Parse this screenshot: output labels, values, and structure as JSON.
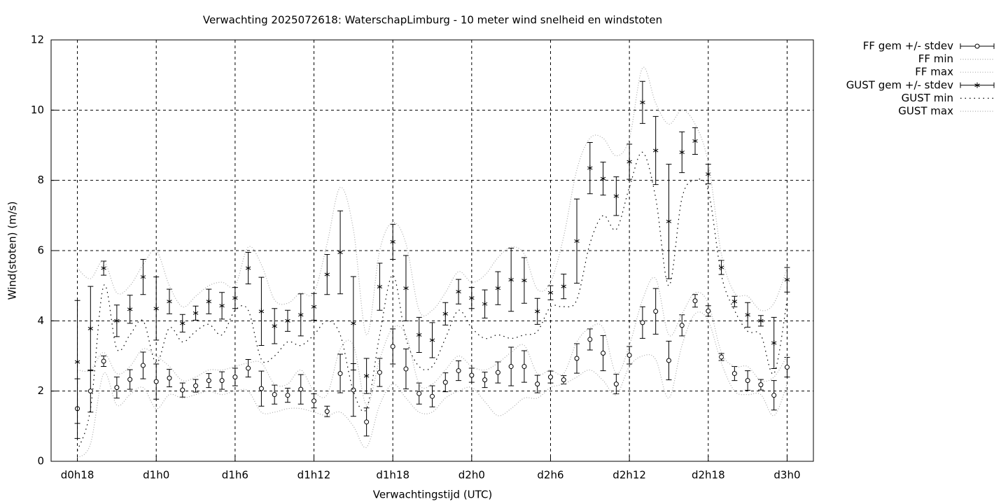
{
  "chart_data": {
    "type": "errorbar_line",
    "title": "Verwachting 2025072618: WaterschapLimburg - 10 meter wind snelheid en windstoten",
    "x_label": "Verwachtingstijd (UTC)",
    "y_label": "Wind(stoten) (m/s)",
    "xlim": [
      16,
      74
    ],
    "xticks": [
      {
        "value": 18,
        "label": "d0h18"
      },
      {
        "value": 24,
        "label": "d1h0"
      },
      {
        "value": 30,
        "label": "d1h6"
      },
      {
        "value": 36,
        "label": "d1h12"
      },
      {
        "value": 42,
        "label": "d1h18"
      },
      {
        "value": 48,
        "label": "d2h0"
      },
      {
        "value": 54,
        "label": "d2h6"
      },
      {
        "value": 60,
        "label": "d2h12"
      },
      {
        "value": 66,
        "label": "d2h18"
      },
      {
        "value": 72,
        "label": "d3h0"
      }
    ],
    "ylim": [
      0,
      12
    ],
    "yticks": [
      0,
      2,
      4,
      6,
      8,
      10,
      12
    ],
    "grid": true,
    "legend": "outside-right-top",
    "x": [
      18,
      19,
      20,
      21,
      22,
      23,
      24,
      25,
      26,
      27,
      28,
      29,
      30,
      31,
      32,
      33,
      34,
      35,
      36,
      37,
      38,
      39,
      40,
      41,
      42,
      43,
      44,
      45,
      46,
      47,
      48,
      49,
      50,
      51,
      52,
      53,
      54,
      55,
      56,
      57,
      58,
      59,
      60,
      61,
      62,
      63,
      64,
      65,
      66,
      67,
      68,
      69,
      70,
      71,
      72
    ],
    "series": [
      {
        "name": "FF gem +/- stdev",
        "color": "#000000",
        "marker": "circle",
        "values": [
          1.5,
          2.0,
          2.85,
          2.1,
          2.33,
          2.73,
          2.27,
          2.37,
          2.03,
          2.15,
          2.3,
          2.3,
          2.4,
          2.65,
          2.07,
          1.9,
          1.88,
          2.05,
          1.72,
          1.42,
          2.5,
          2.03,
          1.12,
          2.53,
          3.27,
          2.63,
          1.93,
          1.85,
          2.25,
          2.58,
          2.45,
          2.32,
          2.53,
          2.7,
          2.7,
          2.2,
          2.4,
          2.32,
          2.93,
          3.47,
          3.08,
          2.2,
          3.02,
          3.95,
          4.27,
          2.87,
          3.87,
          4.57,
          4.28,
          2.97,
          2.5,
          2.3,
          2.18,
          1.88,
          2.68
        ],
        "errors": [
          0.85,
          0.6,
          0.15,
          0.3,
          0.28,
          0.38,
          0.5,
          0.25,
          0.2,
          0.18,
          0.2,
          0.25,
          0.25,
          0.25,
          0.5,
          0.27,
          0.2,
          0.42,
          0.2,
          0.15,
          0.55,
          0.75,
          0.4,
          0.4,
          0.5,
          0.57,
          0.3,
          0.3,
          0.27,
          0.28,
          0.2,
          0.22,
          0.3,
          0.55,
          0.45,
          0.25,
          0.17,
          0.12,
          0.42,
          0.3,
          0.5,
          0.28,
          0.25,
          0.45,
          0.65,
          0.55,
          0.3,
          0.18,
          0.15,
          0.1,
          0.2,
          0.28,
          0.15,
          0.42,
          0.28
        ]
      },
      {
        "name": "FF min",
        "color": "#aaaaaa",
        "values": [
          0.1,
          0.5,
          2.5,
          1.6,
          1.9,
          2.1,
          1.5,
          1.9,
          1.8,
          1.9,
          2.0,
          1.9,
          2.0,
          2.0,
          1.4,
          1.4,
          1.5,
          1.5,
          1.4,
          1.3,
          1.4,
          1.0,
          0.4,
          1.6,
          2.2,
          1.8,
          1.4,
          1.4,
          1.8,
          2.0,
          2.1,
          1.7,
          1.3,
          1.5,
          1.8,
          1.8,
          2.1,
          2.2,
          2.4,
          2.6,
          2.3,
          1.9,
          2.7,
          3.0,
          2.9,
          1.8,
          3.3,
          4.2,
          4.0,
          2.8,
          2.0,
          1.9,
          1.9,
          1.3,
          2.2
        ]
      },
      {
        "name": "FF max",
        "color": "#aaaaaa",
        "values": [
          2.6,
          2.6,
          3.1,
          2.5,
          2.7,
          3.2,
          3.0,
          2.7,
          2.3,
          2.4,
          2.6,
          2.6,
          2.7,
          2.8,
          2.8,
          2.2,
          2.2,
          2.6,
          2.0,
          1.9,
          3.2,
          3.3,
          1.6,
          2.9,
          3.8,
          3.6,
          2.2,
          2.2,
          2.6,
          3.0,
          2.7,
          2.6,
          2.8,
          3.1,
          3.3,
          2.5,
          2.6,
          2.5,
          3.4,
          3.8,
          3.8,
          2.5,
          3.3,
          4.6,
          5.2,
          3.6,
          4.2,
          4.8,
          4.5,
          3.1,
          2.7,
          2.7,
          2.3,
          2.4,
          3.0
        ]
      },
      {
        "name": "GUST gem +/- stdev",
        "color": "#000000",
        "marker": "asterisk",
        "values": [
          2.83,
          3.78,
          5.5,
          4.0,
          4.33,
          5.25,
          4.35,
          4.55,
          3.93,
          4.22,
          4.55,
          4.43,
          4.65,
          5.5,
          4.27,
          3.85,
          4.0,
          4.17,
          4.4,
          5.32,
          5.95,
          3.93,
          2.43,
          4.97,
          6.25,
          4.93,
          3.6,
          3.45,
          4.2,
          4.83,
          4.65,
          4.48,
          4.93,
          5.17,
          5.15,
          4.27,
          4.8,
          4.98,
          6.27,
          8.35,
          8.05,
          7.55,
          8.53,
          10.22,
          8.85,
          6.83,
          8.8,
          9.12,
          8.18,
          5.52,
          4.55,
          4.17,
          4.0,
          3.37,
          5.17
        ],
        "errors": [
          1.75,
          1.2,
          0.2,
          0.45,
          0.4,
          0.5,
          0.9,
          0.35,
          0.25,
          0.2,
          0.35,
          0.38,
          0.3,
          0.45,
          0.97,
          0.5,
          0.3,
          0.6,
          0.38,
          0.57,
          1.18,
          1.33,
          0.5,
          0.67,
          0.5,
          0.93,
          0.5,
          0.5,
          0.32,
          0.35,
          0.3,
          0.4,
          0.47,
          0.9,
          0.65,
          0.37,
          0.2,
          0.35,
          1.2,
          0.73,
          0.47,
          0.55,
          0.5,
          0.6,
          0.97,
          1.63,
          0.58,
          0.38,
          0.28,
          0.2,
          0.15,
          0.35,
          0.15,
          0.73,
          0.35
        ]
      },
      {
        "name": "GUST min",
        "color": "#000000",
        "values": [
          0.3,
          1.5,
          5.0,
          3.2,
          3.6,
          4.0,
          2.8,
          3.8,
          3.4,
          3.7,
          3.9,
          3.6,
          4.3,
          4.3,
          2.9,
          3.0,
          3.4,
          3.3,
          3.6,
          4.0,
          3.6,
          2.0,
          1.5,
          3.6,
          5.3,
          3.5,
          2.7,
          2.7,
          3.5,
          4.3,
          3.8,
          3.5,
          3.6,
          3.5,
          3.6,
          3.7,
          4.4,
          4.4,
          4.6,
          6.2,
          7.0,
          6.6,
          7.8,
          8.8,
          7.5,
          5.0,
          7.5,
          8.0,
          7.7,
          5.3,
          4.3,
          3.7,
          3.6,
          2.5,
          4.6
        ]
      },
      {
        "name": "GUST max",
        "color": "#aaaaaa",
        "values": [
          5.5,
          5.2,
          5.7,
          4.8,
          5.0,
          5.6,
          6.0,
          5.0,
          4.4,
          4.7,
          5.0,
          5.1,
          5.0,
          6.1,
          5.6,
          4.6,
          4.5,
          4.8,
          4.8,
          6.2,
          7.8,
          6.6,
          3.6,
          6.0,
          6.8,
          6.2,
          4.3,
          4.3,
          4.8,
          5.4,
          5.1,
          5.3,
          5.8,
          6.1,
          5.9,
          4.9,
          5.1,
          6.4,
          8.3,
          9.2,
          9.2,
          8.7,
          9.2,
          11.2,
          10.2,
          9.6,
          10.0,
          9.6,
          8.5,
          5.9,
          4.8,
          4.7,
          4.3,
          4.5,
          5.5
        ]
      }
    ]
  }
}
